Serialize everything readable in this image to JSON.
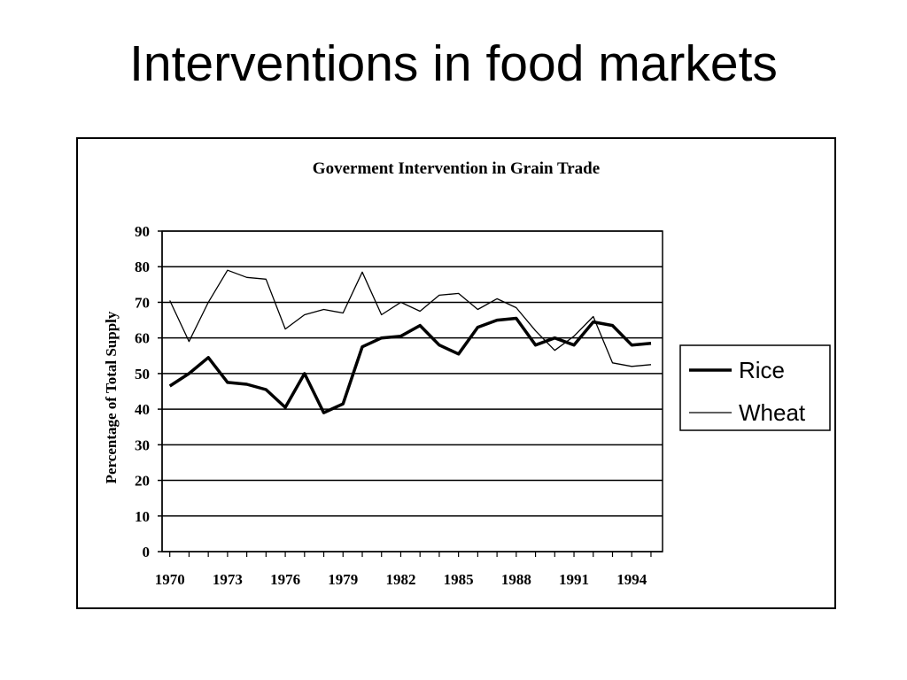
{
  "slide": {
    "title": "Interventions in food markets"
  },
  "chart_data": {
    "type": "line",
    "title": "Goverment Intervention in Grain Trade",
    "xlabel": "",
    "ylabel": "Percentage of Total Supply",
    "ylim": [
      0,
      90
    ],
    "yticks": [
      0,
      10,
      20,
      30,
      40,
      50,
      60,
      70,
      80,
      90
    ],
    "xlim": [
      1969.6,
      1995.6
    ],
    "xticks": [
      1970,
      1973,
      1976,
      1979,
      1982,
      1985,
      1988,
      1991,
      1994
    ],
    "grid": "horizontal",
    "legend_position": "right",
    "x": [
      1970,
      1971,
      1972,
      1973,
      1974,
      1975,
      1976,
      1977,
      1978,
      1979,
      1980,
      1981,
      1982,
      1983,
      1984,
      1985,
      1986,
      1987,
      1988,
      1989,
      1990,
      1991,
      1992,
      1993,
      1994,
      1995
    ],
    "series": [
      {
        "name": "Rice",
        "color": "#000000",
        "line_width": "thick",
        "values": [
          46.5,
          50,
          54.5,
          47.5,
          47,
          45.5,
          40.5,
          50,
          39,
          41.5,
          57.5,
          60,
          60.5,
          63.5,
          58,
          55.5,
          63,
          65,
          65.5,
          58,
          60,
          58,
          64.5,
          63.5,
          58,
          58.5
        ]
      },
      {
        "name": "Wheat",
        "color": "#000000",
        "line_width": "thin",
        "values": [
          70.5,
          59,
          70,
          79,
          77,
          76.5,
          62.5,
          66.5,
          68,
          67,
          78.5,
          66.5,
          70,
          67.5,
          72,
          72.5,
          68,
          71,
          68.5,
          62,
          56.5,
          60.5,
          66,
          53,
          52,
          52.5
        ]
      }
    ]
  }
}
